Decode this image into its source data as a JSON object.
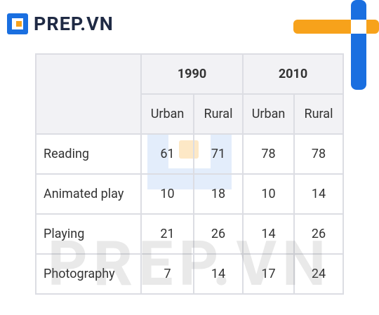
{
  "header": {
    "logo": "PREP.VN"
  },
  "watermark": "PREP.VN",
  "table": {
    "years": [
      "1990",
      "2010"
    ],
    "subheaders": [
      "Urban",
      "Rural",
      "Urban",
      "Rural"
    ],
    "rows": [
      {
        "label": "Reading",
        "values": [
          61,
          71,
          78,
          78
        ]
      },
      {
        "label": "Animated play",
        "values": [
          10,
          18,
          10,
          14
        ]
      },
      {
        "label": "Playing",
        "values": [
          21,
          26,
          14,
          26
        ]
      },
      {
        "label": "Photography",
        "values": [
          7,
          14,
          17,
          24
        ]
      }
    ]
  }
}
